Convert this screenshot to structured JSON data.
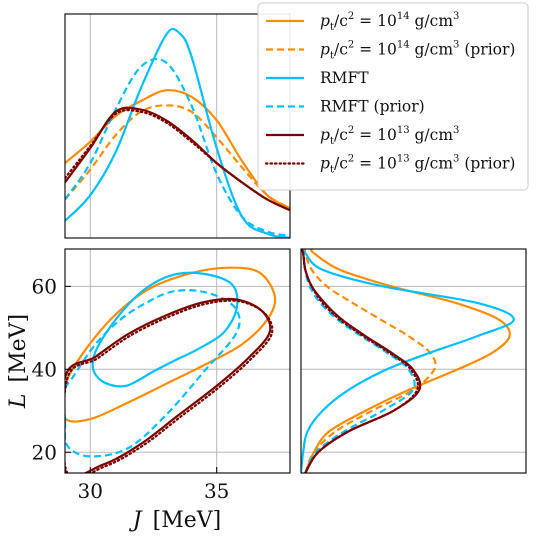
{
  "chart_data": {
    "type": "corner",
    "x": {
      "label_symbol": "J",
      "label_unit": "[MeV]",
      "ticks": [
        30,
        35
      ],
      "range": [
        29,
        37.9
      ]
    },
    "y": {
      "label_symbol": "L",
      "label_unit": "[MeV]",
      "ticks": [
        20,
        40,
        60
      ],
      "range": [
        15,
        69
      ]
    },
    "grid": true,
    "legend_position": "top-right",
    "legend": [
      {
        "key": "pt14",
        "parts": [
          "p",
          "t",
          "/c",
          "2",
          " = 10",
          "14",
          " g/cm",
          "3",
          ""
        ]
      },
      {
        "key": "pt14_prior",
        "parts": [
          "p",
          "t",
          "/c",
          "2",
          " = 10",
          "14",
          " g/cm",
          "3",
          " (prior)"
        ]
      },
      {
        "key": "rmft",
        "text": "RMFT"
      },
      {
        "key": "rmft_prior",
        "text": "RMFT (prior)"
      },
      {
        "key": "pt13",
        "parts": [
          "p",
          "t",
          "/c",
          "2",
          " = 10",
          "13",
          " g/cm",
          "3",
          ""
        ]
      },
      {
        "key": "pt13_prior",
        "parts": [
          "p",
          "t",
          "/c",
          "2",
          " = 10",
          "13",
          " g/cm",
          "3",
          " (prior)"
        ]
      }
    ],
    "series": [
      {
        "key": "pt14",
        "color": "#FF8C00",
        "dash": "solid",
        "J_marginal": {
          "J": [
            29,
            30,
            31,
            32,
            33,
            34,
            35,
            36,
            37,
            37.9
          ],
          "density": [
            0.35,
            0.45,
            0.57,
            0.64,
            0.69,
            0.66,
            0.55,
            0.36,
            0.2,
            0.14
          ]
        },
        "L_marginal": {
          "L": [
            15,
            20,
            25,
            30,
            35,
            40,
            44,
            48,
            52,
            56,
            60,
            64,
            68,
            69
          ],
          "density": [
            0.02,
            0.06,
            0.13,
            0.3,
            0.5,
            0.73,
            0.89,
            0.97,
            0.92,
            0.72,
            0.42,
            0.18,
            0.06,
            0.05
          ]
        },
        "contour": [
          [
            29,
            35.5
          ],
          [
            29.5,
            42
          ],
          [
            30.8,
            52
          ],
          [
            32.3,
            59.3
          ],
          [
            34,
            63.2
          ],
          [
            35.5,
            64.5
          ],
          [
            36.7,
            63.3
          ],
          [
            37.3,
            57.5
          ],
          [
            37.0,
            52
          ],
          [
            36,
            46
          ],
          [
            34.5,
            41
          ],
          [
            33,
            36.5
          ],
          [
            31.5,
            32
          ],
          [
            30,
            28
          ],
          [
            29,
            28.2
          ]
        ]
      },
      {
        "key": "pt14_prior",
        "color": "#FF8C00",
        "dash": "dashed",
        "J_marginal": {
          "J": [
            29,
            30,
            31,
            32,
            33,
            34,
            35,
            36,
            37,
            37.9
          ],
          "density": [
            0.18,
            0.32,
            0.48,
            0.59,
            0.62,
            0.59,
            0.47,
            0.33,
            0.2,
            0.14
          ]
        },
        "L_marginal": {
          "L": [
            15,
            20,
            25,
            30,
            35,
            40,
            44,
            48,
            52,
            56,
            60,
            64,
            68,
            69
          ],
          "density": [
            0.02,
            0.06,
            0.16,
            0.33,
            0.52,
            0.62,
            0.6,
            0.5,
            0.37,
            0.24,
            0.12,
            0.05,
            0.02,
            0.02
          ]
        },
        "contour": []
      },
      {
        "key": "rmft",
        "color": "#00BFFF",
        "dash": "solid",
        "J_marginal": {
          "J": [
            29,
            30,
            31,
            32,
            33,
            33.5,
            34,
            35,
            36,
            37,
            37.9
          ],
          "density": [
            0.08,
            0.2,
            0.4,
            0.7,
            0.95,
            0.96,
            0.85,
            0.42,
            0.1,
            0.02,
            0.0
          ]
        },
        "L_marginal": {
          "L": [
            15,
            20,
            25,
            30,
            35,
            40,
            44,
            48,
            52,
            56,
            60,
            64,
            68,
            69
          ],
          "density": [
            0.0,
            0.01,
            0.03,
            0.1,
            0.22,
            0.4,
            0.6,
            0.82,
            0.99,
            0.82,
            0.38,
            0.1,
            0.02,
            0.01
          ]
        },
        "contour": [
          [
            30.1,
            40.5
          ],
          [
            30.3,
            45.5
          ],
          [
            31.2,
            53.5
          ],
          [
            32.2,
            59.5
          ],
          [
            33.3,
            62.8
          ],
          [
            34.5,
            63
          ],
          [
            35.6,
            60.5
          ],
          [
            35.8,
            55
          ],
          [
            35.3,
            49
          ],
          [
            34.3,
            45
          ],
          [
            33.3,
            42
          ],
          [
            32.5,
            39.5
          ],
          [
            31.4,
            36
          ],
          [
            30.5,
            37
          ]
        ]
      },
      {
        "key": "rmft_prior",
        "color": "#00BFFF",
        "dash": "dashed",
        "J_marginal": {
          "J": [
            29,
            30,
            31,
            32,
            33,
            34,
            35,
            36,
            37,
            37.9
          ],
          "density": [
            0.18,
            0.35,
            0.6,
            0.8,
            0.82,
            0.62,
            0.3,
            0.1,
            0.03,
            0.01
          ]
        },
        "L_marginal": {
          "L": [
            15,
            20,
            25,
            30,
            35,
            40,
            44,
            48,
            52,
            56,
            60,
            64,
            68,
            69
          ],
          "density": [
            0.02,
            0.07,
            0.2,
            0.38,
            0.52,
            0.5,
            0.4,
            0.28,
            0.17,
            0.09,
            0.04,
            0.02,
            0.01,
            0.0
          ]
        },
        "contour": [
          [
            29,
            27.5
          ],
          [
            29.1,
            21.5
          ],
          [
            30,
            19
          ],
          [
            31.5,
            21
          ],
          [
            33,
            29
          ],
          [
            34.5,
            39.5
          ],
          [
            35.8,
            49
          ],
          [
            35.7,
            55
          ],
          [
            34.6,
            58.5
          ],
          [
            33.3,
            58.8
          ],
          [
            32.2,
            56
          ],
          [
            31.2,
            52
          ],
          [
            30.2,
            46
          ],
          [
            29.3,
            38
          ],
          [
            29,
            35
          ]
        ]
      },
      {
        "key": "pt13",
        "color": "#7B0000",
        "dash": "solid",
        "J_marginal": {
          "J": [
            29,
            30,
            31,
            32,
            33,
            34,
            35,
            36,
            37,
            37.9
          ],
          "density": [
            0.26,
            0.42,
            0.59,
            0.6,
            0.55,
            0.46,
            0.35,
            0.26,
            0.18,
            0.13
          ]
        },
        "L_marginal": {
          "L": [
            15,
            20,
            25,
            30,
            35,
            40,
            44,
            48,
            52,
            56,
            60,
            64,
            68,
            69
          ],
          "density": [
            0.02,
            0.08,
            0.22,
            0.43,
            0.55,
            0.52,
            0.42,
            0.3,
            0.19,
            0.11,
            0.05,
            0.02,
            0.01,
            0.0
          ]
        },
        "contour": [
          [
            29,
            38
          ],
          [
            30.2,
            43
          ],
          [
            31.5,
            48.5
          ],
          [
            33,
            53
          ],
          [
            34.5,
            56.2
          ],
          [
            35.8,
            56.8
          ],
          [
            36.8,
            54
          ],
          [
            37.1,
            49
          ],
          [
            36.3,
            43
          ],
          [
            35,
            36
          ],
          [
            33.5,
            29
          ],
          [
            32,
            22
          ],
          [
            30.5,
            17
          ],
          [
            29,
            15.5
          ]
        ]
      },
      {
        "key": "pt13_prior",
        "color": "#7B0000",
        "dash": "dotted",
        "J_marginal": {
          "J": [
            29,
            30,
            31,
            32,
            33,
            34,
            35,
            36,
            37,
            37.9
          ],
          "density": [
            0.28,
            0.43,
            0.58,
            0.59,
            0.54,
            0.45,
            0.35,
            0.26,
            0.18,
            0.13
          ]
        },
        "L_marginal": {
          "L": [
            15,
            20,
            25,
            30,
            35,
            40,
            44,
            48,
            52,
            56,
            60,
            64,
            68,
            69
          ],
          "density": [
            0.02,
            0.08,
            0.22,
            0.43,
            0.54,
            0.51,
            0.41,
            0.29,
            0.18,
            0.1,
            0.05,
            0.02,
            0.01,
            0.0
          ]
        },
        "contour": []
      }
    ]
  }
}
